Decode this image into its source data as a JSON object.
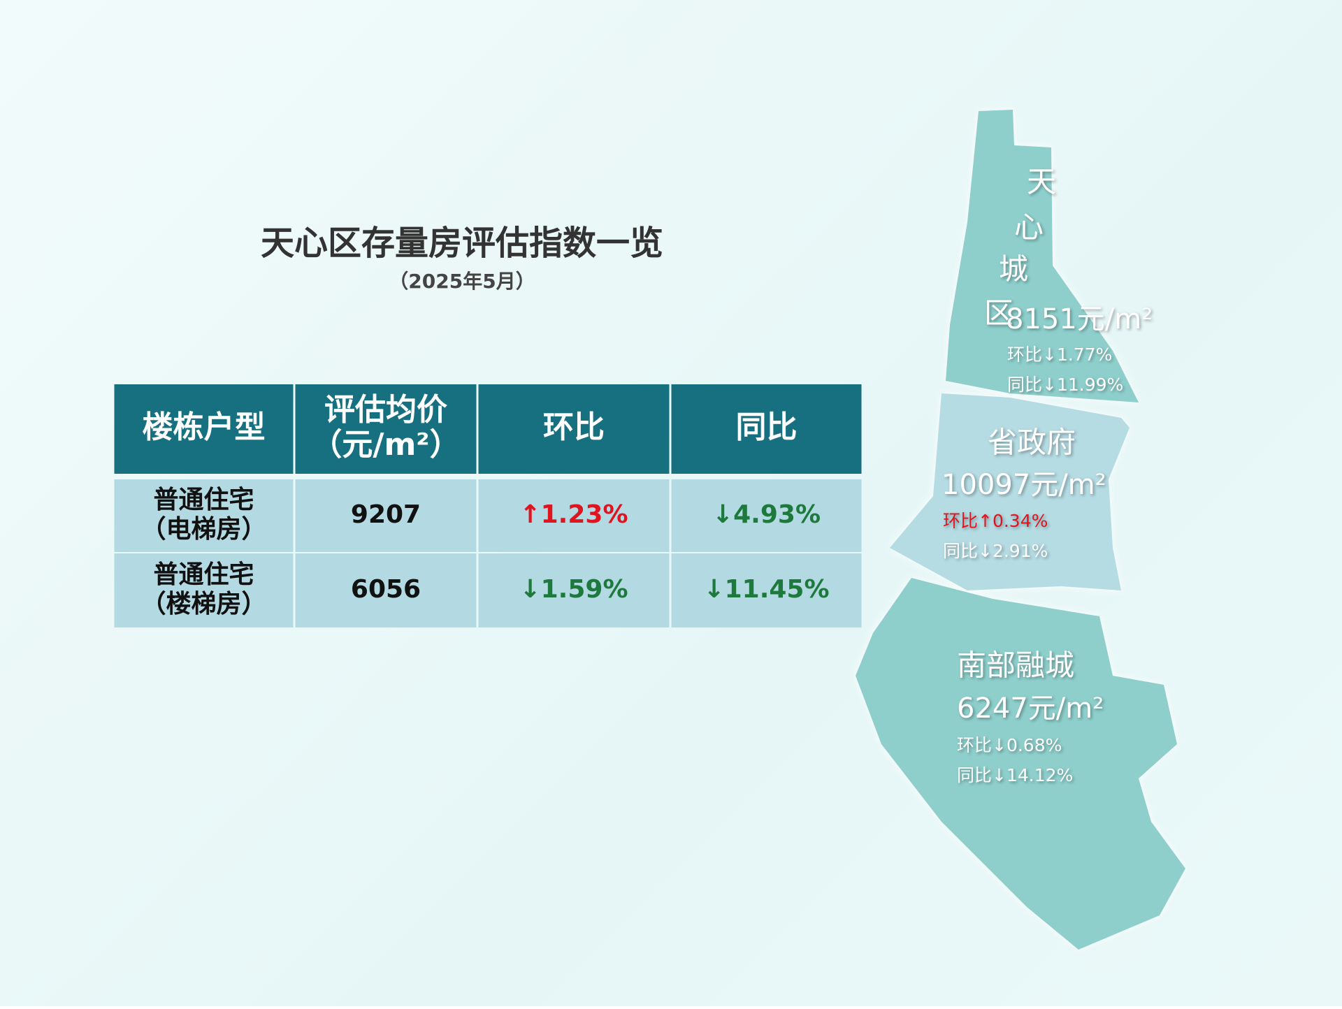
{
  "header": {
    "title": "天心区存量房评估指数一览",
    "subtitle": "（2025年5月）"
  },
  "table": {
    "headers": [
      [
        "楼栋户型"
      ],
      [
        "评估均价",
        "（元/m²）"
      ],
      [
        "环比"
      ],
      [
        "同比"
      ]
    ],
    "rows": [
      [
        {
          "lines": [
            "普通住宅",
            "（电梯房）"
          ],
          "color": "#111111"
        },
        {
          "lines": [
            "9207"
          ],
          "color": "#111111"
        },
        {
          "lines": [
            "↑1.23%"
          ],
          "color": "#e0141e"
        },
        {
          "lines": [
            "↓4.93%"
          ],
          "color": "#1e7a3c"
        }
      ],
      [
        {
          "lines": [
            "普通住宅",
            "（楼梯房）"
          ],
          "color": "#111111"
        },
        {
          "lines": [
            "6056"
          ],
          "color": "#111111"
        },
        {
          "lines": [
            "↓1.59%"
          ],
          "color": "#1e7a3c"
        },
        {
          "lines": [
            "↓11.45%"
          ],
          "color": "#1e7a3c"
        }
      ]
    ]
  },
  "map": {
    "regions": [
      {
        "name": [
          "天",
          "心",
          "城",
          "区"
        ],
        "price": "8151元/m²",
        "mom": "环比↓1.77%",
        "yoy": "同比↓11.99%",
        "color": "#8ecfcc",
        "mom_color": "#ffffff"
      },
      {
        "name": [
          "省政府"
        ],
        "price": "10097元/m²",
        "mom": "环比↑0.34%",
        "yoy": "同比↓2.91%",
        "color": "#b5dbe3",
        "mom_color": "#e0141e"
      },
      {
        "name": [
          "南部融城"
        ],
        "price": "6247元/m²",
        "mom": "环比↓0.68%",
        "yoy": "同比↓14.12%",
        "color": "#8ecfcc",
        "mom_color": "#ffffff"
      }
    ]
  }
}
